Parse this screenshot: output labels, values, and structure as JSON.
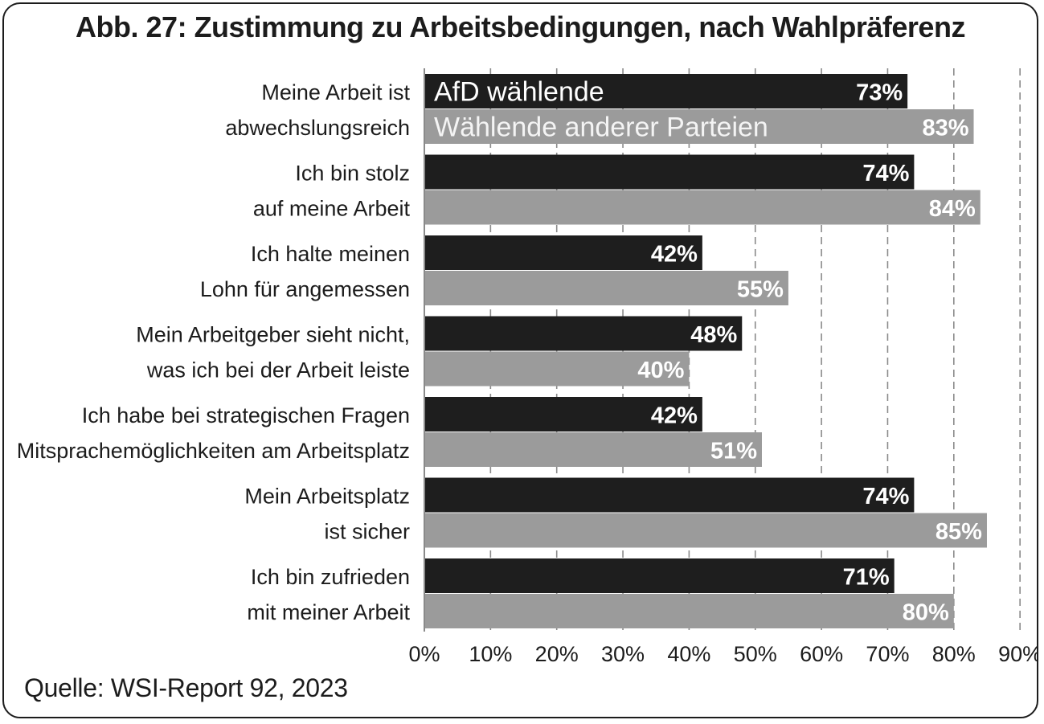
{
  "chart_data": {
    "type": "bar",
    "orientation": "horizontal",
    "title": "Abb. 27: Zustimmung zu Arbeitsbedingungen, nach Wahlpräferenz",
    "categories": [
      [
        "Meine Arbeit ist",
        "abwechslungsreich"
      ],
      [
        "Ich bin stolz",
        "auf meine Arbeit"
      ],
      [
        "Ich halte meinen",
        "Lohn für angemessen"
      ],
      [
        "Mein Arbeitgeber sieht nicht,",
        "was ich bei der Arbeit leiste"
      ],
      [
        "Ich habe bei strategischen Fragen",
        "Mitsprachemöglichkeiten am Arbeitsplatz"
      ],
      [
        "Mein Arbeitsplatz",
        "ist sicher"
      ],
      [
        "Ich bin zufrieden",
        "mit meiner Arbeit"
      ]
    ],
    "series": [
      {
        "name": "AfD wählende",
        "color": "#1e1e1e",
        "values": [
          73,
          74,
          42,
          48,
          42,
          74,
          71
        ]
      },
      {
        "name": "Wählende anderer Parteien",
        "color": "#9b9b9b",
        "values": [
          83,
          84,
          55,
          40,
          51,
          85,
          80
        ]
      }
    ],
    "value_suffix": "%",
    "xlim": [
      0,
      90
    ],
    "xticks": [
      0,
      10,
      20,
      30,
      40,
      50,
      60,
      70,
      80,
      90
    ],
    "tick_suffix": "%",
    "grid": "dashed vertical",
    "legend": "inside first bars"
  },
  "source": "Quelle: WSI-Report 92, 2023"
}
